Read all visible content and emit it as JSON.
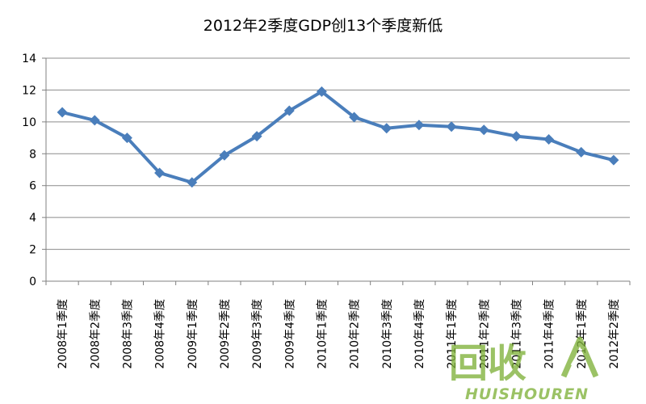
{
  "chart_data": {
    "type": "line",
    "title": "2012年2季度GDP创13个季度新低",
    "xlabel": "",
    "ylabel": "",
    "categories": [
      "2008年1季度",
      "2008年2季度",
      "2008年3季度",
      "2008年4季度",
      "2009年1季度",
      "2009年2季度",
      "2009年3季度",
      "2009年4季度",
      "2010年1季度",
      "2010年2季度",
      "2010年3季度",
      "2010年4季度",
      "2011年1季度",
      "2011年2季度",
      "2011年3季度",
      "2011年4季度",
      "2012年1季度",
      "2012年2季度"
    ],
    "series": [
      {
        "values": [
          10.6,
          10.1,
          9.0,
          6.8,
          6.2,
          7.9,
          9.1,
          10.7,
          11.9,
          10.3,
          9.6,
          9.8,
          9.7,
          9.5,
          9.1,
          8.9,
          8.1,
          7.6
        ],
        "color": "#4a7ebb",
        "marker": "diamond"
      }
    ],
    "ylim": [
      0,
      14
    ],
    "yticks": [
      0,
      2,
      4,
      6,
      8,
      10,
      12,
      14
    ],
    "grid": true,
    "legend": "none"
  },
  "watermark": {
    "text": "回收",
    "subtext": "HUISHOUREN",
    "color": "#7fb23a",
    "icon": "recycle-logo-icon"
  }
}
